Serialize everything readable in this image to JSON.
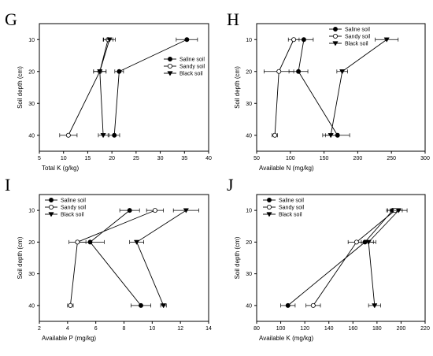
{
  "chart_data": [
    {
      "panel": "G",
      "type": "line",
      "xlabel": "Total K (g/kg)",
      "ylabel": "Soil depth (cm)",
      "xlim": [
        5,
        40
      ],
      "xticks": [
        5,
        10,
        15,
        20,
        25,
        30,
        35,
        40
      ],
      "ylim": [
        5,
        45
      ],
      "yticks": [
        10,
        20,
        30,
        40
      ],
      "series": [
        {
          "name": "Saline soil",
          "marker": "circle-filled",
          "y": [
            10,
            20,
            40
          ],
          "x": [
            35.5,
            21.5,
            20.5
          ],
          "xerr": [
            2.2,
            0.9,
            1.1
          ]
        },
        {
          "name": "Sandy soil",
          "marker": "circle-open",
          "y": [
            10,
            20,
            40
          ],
          "x": [
            19.2,
            17.5,
            11.0
          ],
          "xerr": [
            1.0,
            1.3,
            1.8
          ]
        },
        {
          "name": "Black soil",
          "marker": "triangle-down",
          "y": [
            10,
            20,
            40
          ],
          "x": [
            19.5,
            17.5,
            18.2
          ],
          "xerr": [
            1.2,
            1.3,
            1.0
          ]
        }
      ]
    },
    {
      "panel": "H",
      "type": "line",
      "xlabel": "Available N (mg/kg)",
      "ylabel": "Soil depth (cm)",
      "xlim": [
        50,
        300
      ],
      "xticks": [
        50,
        100,
        150,
        200,
        250,
        300
      ],
      "ylim": [
        5,
        45
      ],
      "yticks": [
        10,
        20,
        30,
        40
      ],
      "series": [
        {
          "name": "Saline soil",
          "marker": "circle-filled",
          "y": [
            10,
            20,
            40
          ],
          "x": [
            120,
            112,
            170
          ],
          "xerr": [
            14,
            14,
            18
          ]
        },
        {
          "name": "Sandy soil",
          "marker": "circle-open",
          "y": [
            10,
            20,
            40
          ],
          "x": [
            105,
            83,
            77
          ],
          "xerr": [
            8,
            22,
            4
          ]
        },
        {
          "name": "Black soil",
          "marker": "triangle-down",
          "y": [
            10,
            20,
            40
          ],
          "x": [
            243,
            177,
            160
          ],
          "xerr": [
            17,
            8,
            12
          ]
        }
      ]
    },
    {
      "panel": "I",
      "type": "line",
      "xlabel": "Available P (mg/kg)",
      "ylabel": "Soil depth (cm)",
      "xlim": [
        2,
        14
      ],
      "xticks": [
        2,
        4,
        6,
        8,
        10,
        12,
        14
      ],
      "ylim": [
        5,
        45
      ],
      "yticks": [
        10,
        20,
        30,
        40
      ],
      "series": [
        {
          "name": "Saline soil",
          "marker": "circle-filled",
          "y": [
            10,
            20,
            40
          ],
          "x": [
            8.4,
            5.6,
            9.2
          ],
          "xerr": [
            0.7,
            1.0,
            0.7
          ]
        },
        {
          "name": "Sandy soil",
          "marker": "circle-open",
          "y": [
            10,
            20,
            40
          ],
          "x": [
            10.2,
            4.7,
            4.2
          ],
          "xerr": [
            0.6,
            0.6,
            0.2
          ]
        },
        {
          "name": "Black soil",
          "marker": "triangle-down",
          "y": [
            10,
            20,
            40
          ],
          "x": [
            12.4,
            8.9,
            10.8
          ],
          "xerr": [
            0.9,
            0.5,
            0.2
          ]
        }
      ]
    },
    {
      "panel": "J",
      "type": "line",
      "xlabel": "Available K (mg/kg)",
      "ylabel": "Soil depth (cm)",
      "xlim": [
        80,
        220
      ],
      "xticks": [
        80,
        100,
        120,
        140,
        160,
        180,
        200,
        220
      ],
      "ylim": [
        5,
        45
      ],
      "yticks": [
        10,
        20,
        30,
        40
      ],
      "series": [
        {
          "name": "Saline soil",
          "marker": "circle-filled",
          "y": [
            10,
            20,
            40
          ],
          "x": [
            193,
            170,
            106
          ],
          "xerr": [
            5,
            7,
            6
          ]
        },
        {
          "name": "Sandy soil",
          "marker": "circle-open",
          "y": [
            10,
            20,
            40
          ],
          "x": [
            195,
            163,
            127
          ],
          "xerr": [
            6,
            7,
            6
          ]
        },
        {
          "name": "Black soil",
          "marker": "triangle-down",
          "y": [
            10,
            20,
            40
          ],
          "x": [
            198,
            173,
            178
          ],
          "xerr": [
            7,
            6,
            5
          ]
        }
      ]
    }
  ]
}
